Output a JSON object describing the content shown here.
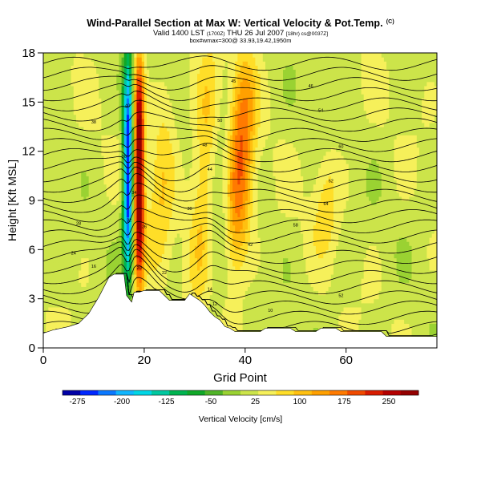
{
  "title": {
    "main": "Wind-Parallel Section at Max W: Vertical Velocity & Pot.Temp.",
    "mark": "(C)",
    "valid_main": "Valid 1400 LST",
    "valid_utc": "(1700Z)",
    "valid_date": "THU 26 Jul 2007",
    "valid_run": "[18hr) cs@0037Z]",
    "line3": "box#wmax=300@ 33.93,19.42,1950m"
  },
  "chart_data": {
    "type": "heatmap",
    "xlabel": "Grid Point",
    "ylabel": "Height [Kft MSL]",
    "xlim": [
      0,
      78
    ],
    "ylim": [
      0,
      18
    ],
    "x_ticks": [
      0,
      20,
      40,
      60
    ],
    "y_ticks": [
      0,
      3,
      6,
      9,
      12,
      15,
      18
    ],
    "colorbar": {
      "label": "Vertical Velocity [cm/s]",
      "min": -300,
      "max": 300,
      "tick_values": [
        -275,
        -200,
        -125,
        -50,
        25,
        100,
        175,
        250
      ],
      "tick_labels": [
        "-275",
        "-200",
        "-125",
        "-50",
        "25",
        "100",
        "175",
        "250"
      ],
      "colors": [
        "#0000a6",
        "#0028ff",
        "#0a78ff",
        "#10b6ff",
        "#00d6e6",
        "#00c8a0",
        "#00b450",
        "#10a828",
        "#50b428",
        "#9ad232",
        "#cce44a",
        "#f6f05a",
        "#ffde28",
        "#ffc010",
        "#ffa000",
        "#ff7a00",
        "#f04a00",
        "#d81c00",
        "#b40000",
        "#940000"
      ]
    },
    "vertical_velocity_features": [
      {
        "name": "downdraft",
        "x": 16.8,
        "z_range": [
          4.5,
          17.5
        ],
        "peak_cm_s": -290
      },
      {
        "name": "updraft",
        "x": 19.0,
        "z_range": [
          4.0,
          17.5
        ],
        "peak_cm_s": 290
      },
      {
        "name": "updraft",
        "x": 23.5,
        "z_range": [
          4.0,
          16.5
        ],
        "peak_cm_s": 60
      },
      {
        "name": "updraft",
        "x": 32.0,
        "z_range": [
          3.5,
          17.5
        ],
        "peak_cm_s": 80
      },
      {
        "name": "updraft",
        "x": 39.0,
        "z_range": [
          5.0,
          17.5
        ],
        "peak_cm_s": 160
      },
      {
        "name": "downdraft",
        "x": 35.0,
        "z_range": [
          3.0,
          16.0
        ],
        "peak_cm_s": -40
      },
      {
        "name": "updraft",
        "x": 56.0,
        "z_range": [
          6.0,
          12.0
        ],
        "peak_cm_s": 55
      }
    ],
    "isentrope_labels": [
      {
        "text": "45",
        "x": 37.7,
        "z": 16.3
      },
      {
        "text": "40",
        "x": 16.7,
        "z": 14.8
      },
      {
        "text": "38",
        "x": 10.0,
        "z": 13.8
      },
      {
        "text": "50",
        "x": 35.0,
        "z": 13.9
      },
      {
        "text": "36",
        "x": 16.0,
        "z": 11.7
      },
      {
        "text": "48",
        "x": 32.0,
        "z": 12.4
      },
      {
        "text": "44",
        "x": 33.0,
        "z": 10.9
      },
      {
        "text": "34",
        "x": 18.0,
        "z": 9.5
      },
      {
        "text": "30",
        "x": 29.0,
        "z": 8.5
      },
      {
        "text": "28",
        "x": 7.0,
        "z": 7.6
      },
      {
        "text": "32",
        "x": 17.0,
        "z": 7.8
      },
      {
        "text": "26",
        "x": 20.0,
        "z": 7.4
      },
      {
        "text": "24",
        "x": 6.0,
        "z": 5.8
      },
      {
        "text": "16",
        "x": 10.0,
        "z": 5.0
      },
      {
        "text": "20",
        "x": 19.0,
        "z": 4.9
      },
      {
        "text": "22",
        "x": 24.0,
        "z": 4.6
      },
      {
        "text": "14",
        "x": 33.0,
        "z": 3.6
      },
      {
        "text": "12",
        "x": 34.0,
        "z": 2.7
      },
      {
        "text": "10",
        "x": 45.0,
        "z": 2.3
      },
      {
        "text": "42",
        "x": 41.0,
        "z": 6.3
      },
      {
        "text": "54",
        "x": 55.0,
        "z": 14.5
      },
      {
        "text": "60",
        "x": 59.0,
        "z": 12.3
      },
      {
        "text": "62",
        "x": 57.0,
        "z": 10.2
      },
      {
        "text": "64",
        "x": 56.0,
        "z": 8.8
      },
      {
        "text": "58",
        "x": 50.0,
        "z": 7.5
      },
      {
        "text": "52",
        "x": 59.0,
        "z": 3.2
      },
      {
        "text": "46",
        "x": 53.0,
        "z": 16.0
      }
    ],
    "terrain_top_kft": [
      [
        0,
        0.9
      ],
      [
        2,
        1.1
      ],
      [
        5,
        1.3
      ],
      [
        7,
        1.5
      ],
      [
        8,
        1.8
      ],
      [
        9,
        2.1
      ],
      [
        10,
        2.6
      ],
      [
        11,
        3.1
      ],
      [
        12,
        3.7
      ],
      [
        13,
        4.3
      ],
      [
        14,
        4.5
      ],
      [
        16,
        4.5
      ],
      [
        16.5,
        3.2
      ],
      [
        17.5,
        2.8
      ],
      [
        18,
        3.4
      ],
      [
        19,
        3.4
      ],
      [
        20,
        3.5
      ],
      [
        23,
        3.5
      ],
      [
        24,
        3.2
      ],
      [
        25,
        2.9
      ],
      [
        28,
        2.9
      ],
      [
        29,
        3.3
      ],
      [
        30,
        3.1
      ],
      [
        31,
        2.9
      ],
      [
        32,
        2.6
      ],
      [
        33,
        2.2
      ],
      [
        34,
        1.9
      ],
      [
        35,
        1.7
      ],
      [
        36,
        1.3
      ],
      [
        37,
        1.2
      ],
      [
        38,
        1.0
      ],
      [
        43,
        1.0
      ],
      [
        44,
        1.2
      ],
      [
        49,
        1.2
      ],
      [
        50,
        1.0
      ],
      [
        54,
        1.0
      ],
      [
        55,
        1.2
      ],
      [
        58,
        1.2
      ],
      [
        59,
        1.0
      ],
      [
        67,
        1.0
      ],
      [
        68,
        0.7
      ],
      [
        78,
        0.7
      ]
    ]
  }
}
